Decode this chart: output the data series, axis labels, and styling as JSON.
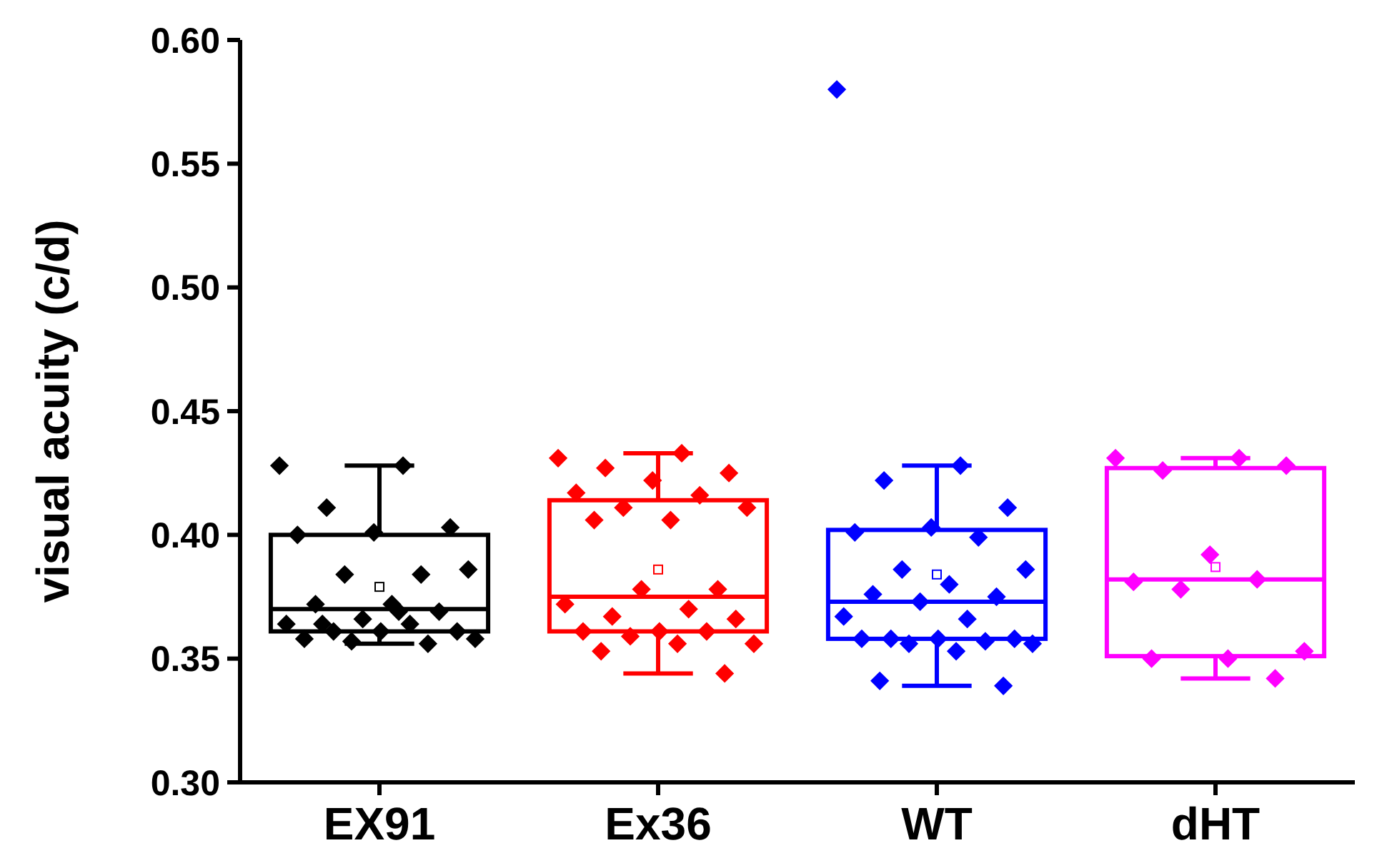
{
  "chart_data": {
    "type": "box",
    "ylabel": "visual acuity (c/d)",
    "categories": [
      "EX91",
      "Ex36",
      "WT",
      "dHT"
    ],
    "colors": [
      "#000000",
      "#ff0000",
      "#0000ff",
      "#ff00ff"
    ],
    "boxes": [
      {
        "low": 0.356,
        "q1": 0.361,
        "median": 0.37,
        "q3": 0.4,
        "high": 0.428,
        "mean": 0.379
      },
      {
        "low": 0.344,
        "q1": 0.361,
        "median": 0.375,
        "q3": 0.414,
        "high": 0.433,
        "mean": 0.386
      },
      {
        "low": 0.339,
        "q1": 0.358,
        "median": 0.373,
        "q3": 0.402,
        "high": 0.428,
        "mean": 0.384
      },
      {
        "low": 0.342,
        "q1": 0.351,
        "median": 0.382,
        "q3": 0.427,
        "high": 0.431,
        "mean": 0.387
      }
    ],
    "ylim": [
      0.3,
      0.6
    ],
    "yticks": [
      {
        "value": 0.3,
        "label": "0.30"
      },
      {
        "value": 0.35,
        "label": "0.35"
      },
      {
        "value": 0.4,
        "label": "0.40"
      },
      {
        "value": 0.45,
        "label": "0.45"
      },
      {
        "value": 0.5,
        "label": "0.50"
      },
      {
        "value": 0.55,
        "label": "0.55"
      },
      {
        "value": 0.6,
        "label": "0.60"
      }
    ],
    "grid": false,
    "marker": "diamond",
    "series": [
      {
        "type": "scatter",
        "color": "#000000",
        "x": [
          "EX91",
          "EX91",
          "EX91",
          "EX91",
          "EX91",
          "EX91",
          "EX91",
          "EX91",
          "EX91",
          "EX91",
          "EX91",
          "EX91",
          "EX91",
          "EX91",
          "EX91",
          "EX91",
          "EX91",
          "EX91",
          "EX91",
          "EX91",
          "EX91",
          "EX91",
          "EX91",
          "EX91"
        ],
        "values": [
          0.428,
          0.428,
          0.411,
          0.403,
          0.401,
          0.4,
          0.384,
          0.384,
          0.386,
          0.372,
          0.372,
          0.369,
          0.366,
          0.364,
          0.364,
          0.361,
          0.361,
          0.361,
          0.358,
          0.356,
          0.357,
          0.358,
          0.369,
          0.364
        ]
      },
      {
        "type": "scatter",
        "color": "#ff0000",
        "x": [
          "Ex36",
          "Ex36",
          "Ex36",
          "Ex36",
          "Ex36",
          "Ex36",
          "Ex36",
          "Ex36",
          "Ex36",
          "Ex36",
          "Ex36",
          "Ex36",
          "Ex36",
          "Ex36",
          "Ex36",
          "Ex36",
          "Ex36",
          "Ex36",
          "Ex36",
          "Ex36",
          "Ex36",
          "Ex36",
          "Ex36",
          "Ex36",
          "Ex36"
        ],
        "values": [
          0.431,
          0.433,
          0.427,
          0.425,
          0.422,
          0.417,
          0.416,
          0.411,
          0.411,
          0.406,
          0.406,
          0.378,
          0.378,
          0.372,
          0.37,
          0.367,
          0.366,
          0.361,
          0.361,
          0.361,
          0.359,
          0.356,
          0.356,
          0.353,
          0.344
        ]
      },
      {
        "type": "scatter",
        "color": "#0000ff",
        "x": [
          "WT",
          "WT",
          "WT",
          "WT",
          "WT",
          "WT",
          "WT",
          "WT",
          "WT",
          "WT",
          "WT",
          "WT",
          "WT",
          "WT",
          "WT",
          "WT",
          "WT",
          "WT",
          "WT",
          "WT",
          "WT",
          "WT",
          "WT",
          "WT",
          "WT"
        ],
        "values": [
          0.58,
          0.428,
          0.422,
          0.411,
          0.403,
          0.401,
          0.399,
          0.386,
          0.386,
          0.38,
          0.376,
          0.375,
          0.373,
          0.367,
          0.366,
          0.358,
          0.358,
          0.358,
          0.358,
          0.357,
          0.356,
          0.356,
          0.353,
          0.341,
          0.339
        ]
      },
      {
        "type": "scatter",
        "color": "#ff00ff",
        "x": [
          "dHT",
          "dHT",
          "dHT",
          "dHT",
          "dHT",
          "dHT",
          "dHT",
          "dHT",
          "dHT",
          "dHT",
          "dHT",
          "dHT"
        ],
        "values": [
          0.431,
          0.431,
          0.426,
          0.428,
          0.392,
          0.381,
          0.382,
          0.378,
          0.353,
          0.35,
          0.35,
          0.342
        ]
      }
    ]
  }
}
